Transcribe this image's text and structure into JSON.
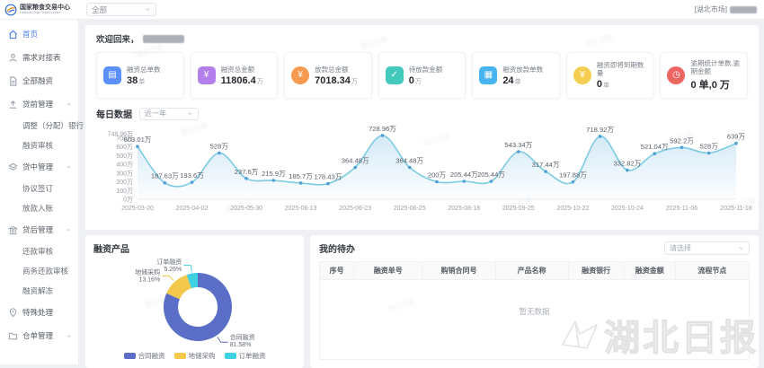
{
  "header": {
    "brand_title": "国家粮食交易中心",
    "brand_subtitle": "National Grain Trade Center",
    "market_dropdown_value": "全部",
    "market_tag": "[湖北市场]"
  },
  "sidebar": {
    "items": [
      {
        "name": "home",
        "label": "首页",
        "icon": "home",
        "active": true
      },
      {
        "name": "demand-docking-table",
        "label": "需求对接表",
        "icon": "user"
      },
      {
        "name": "all-financing",
        "label": "全部融资",
        "icon": "doc"
      },
      {
        "name": "pre-loan-management",
        "label": "贷前管理",
        "icon": "upload",
        "group": true,
        "expanded": true
      },
      {
        "name": "adjust-allocate-bank",
        "label": "调整（分配）银行",
        "sub": true
      },
      {
        "name": "financing-review",
        "label": "融资审核",
        "sub": true
      },
      {
        "name": "in-loan-management",
        "label": "贷中管理",
        "icon": "layers",
        "group": true,
        "expanded": true
      },
      {
        "name": "agreement-signing",
        "label": "协议签订",
        "sub": true
      },
      {
        "name": "disbursement-entry",
        "label": "放款入账",
        "sub": true
      },
      {
        "name": "post-loan-management",
        "label": "贷后管理",
        "icon": "bank",
        "group": true,
        "expanded": true
      },
      {
        "name": "repayment-review",
        "label": "还款审核",
        "sub": true
      },
      {
        "name": "business-repayment-review",
        "label": "商务还款审核",
        "sub": true
      },
      {
        "name": "financing-unfreeze",
        "label": "融资解冻",
        "sub": true
      },
      {
        "name": "special-handling",
        "label": "特殊处理",
        "icon": "pin"
      },
      {
        "name": "warehouse-receipt-management",
        "label": "仓单管理",
        "icon": "folder",
        "group": true,
        "expanded": false
      }
    ]
  },
  "main": {
    "welcome_prefix": "欢迎回来，",
    "stats": [
      {
        "label": "融资总单数",
        "value": "38",
        "unit": "单",
        "color": "#5B8FF9",
        "shape": "square",
        "glyph": "▤",
        "icon": "folder-icon"
      },
      {
        "label": "融资总金额",
        "value": "11806.4",
        "unit": "万",
        "color": "#B37FEB",
        "shape": "square",
        "glyph": "¥",
        "icon": "moneybag-icon"
      },
      {
        "label": "放款总金额",
        "value": "7018.34",
        "unit": "万",
        "color": "#F79A50",
        "shape": "circle",
        "glyph": "¥",
        "icon": "coin-icon"
      },
      {
        "label": "待放款金额",
        "value": "0",
        "unit": "万",
        "color": "#43C8BC",
        "shape": "square",
        "glyph": "✓",
        "icon": "check-doc-icon"
      },
      {
        "label": "融资放款单数",
        "value": "24",
        "unit": "单",
        "color": "#45B4F0",
        "shape": "square",
        "glyph": "▦",
        "icon": "card-icon"
      },
      {
        "label": "融资即将到期数量",
        "value": "0",
        "unit": "单",
        "color": "#F5CD50",
        "shape": "circle",
        "glyph": "¥",
        "icon": "due-coin-icon"
      },
      {
        "label": "逾期统计单数,逾期金额",
        "value": "0 单,0 万",
        "unit": "",
        "color": "#EC6661",
        "shape": "circle",
        "glyph": "◷",
        "icon": "overdue-clock-icon"
      }
    ],
    "daily": {
      "title": "每日数据",
      "range_dropdown_value": "近一年"
    },
    "products": {
      "title": "融资产品"
    },
    "todo": {
      "title": "我的待办",
      "filter_dropdown_placeholder": "请选择",
      "columns": [
        "序号",
        "融资单号",
        "购销合同号",
        "产品名称",
        "融资银行",
        "融资金额",
        "流程节点"
      ],
      "empty_text": "暂无数据"
    },
    "watermark_text": "湖北日报"
  },
  "chart_data": [
    {
      "type": "area",
      "title": "每日数据",
      "values": [
        603.01,
        187.63,
        193.6,
        528,
        237.6,
        215.9,
        185.7,
        178.43,
        364.48,
        728.96,
        364.48,
        200,
        205.44,
        205.44,
        543.34,
        317.44,
        197.88,
        718.92,
        332.82,
        521.04,
        592.2,
        528,
        639
      ],
      "x_tick_labels": [
        "2025-03-20",
        "2025-04-02",
        "2025-05-30",
        "2025-06-13",
        "2025-06-23",
        "2025-06-25",
        "2025-08-18",
        "2025-09-25",
        "2025-10-22",
        "2025-10-24",
        "2025-11-06",
        "2025-11-18"
      ],
      "x_tick_every": 2,
      "unit": "万",
      "ylim": [
        0,
        748.96
      ],
      "y_ticks": [
        0,
        100,
        200,
        300,
        400,
        500,
        600,
        700,
        748.96
      ],
      "grid": false,
      "line_color": "#7CCBE3",
      "dot_color": "#4E9FD6",
      "area_color": "#CFE7F6",
      "label_color": "#5a6068"
    },
    {
      "type": "pie",
      "title": "融资产品",
      "slices": [
        {
          "label": "合同融资",
          "pct": 81.58,
          "color": "#5B6EC7"
        },
        {
          "label": "地储采购",
          "pct": 13.16,
          "color": "#F2C94C"
        },
        {
          "label": "订单融资",
          "pct": 5.26,
          "color": "#3ED1E2"
        }
      ],
      "legend_position": "bottom"
    }
  ]
}
